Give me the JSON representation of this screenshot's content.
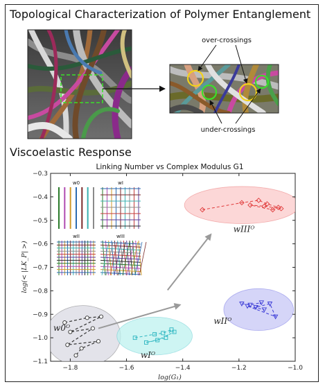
{
  "sections": {
    "top_heading": "Topological Characterization of Polymer Entanglement",
    "bottom_heading": "Viscoelastic Response"
  },
  "annotations": {
    "over_crossings": "over-crossings",
    "under_crossings": "under-crossings"
  },
  "colors": {
    "highlight_green": "#3be02a",
    "crossing_yellow": "#f2d21b",
    "region_w0": "#d9d9e3",
    "region_wI": "#bdf2ef",
    "region_wII": "#c7c7f5",
    "region_wIII": "#fbc9c9",
    "series_w0": "#333333",
    "series_wI": "#2ab5c0",
    "series_wII": "#3a3ad6",
    "series_wIII": "#e03a3a",
    "trend_arrow": "#999999"
  },
  "chart_data": {
    "type": "scatter",
    "title": "Linking Number vs Complex Modulus G1",
    "xlabel": "log(G₁)",
    "ylabel": "log(< |LK_P| >)",
    "xlim": [
      -1.87,
      -1.0
    ],
    "ylim": [
      -1.1,
      -0.3
    ],
    "xticks": [
      "−1.8",
      "−1.6",
      "−1.4",
      "−1.2",
      "−1.0"
    ],
    "yticks": [
      "−0.3",
      "−0.4",
      "−0.5",
      "−0.6",
      "−0.7",
      "−0.8",
      "−0.9",
      "−1.0",
      "−1.1"
    ],
    "grid": false,
    "series": [
      {
        "name": "w0ᴼ",
        "marker": "circle",
        "x": [
          -1.82,
          -1.74,
          -1.69,
          -1.8,
          -1.72,
          -1.81,
          -1.7,
          -1.76,
          -1.78
        ],
        "y": [
          -0.935,
          -0.915,
          -0.91,
          -0.975,
          -0.96,
          -1.03,
          -1.015,
          -1.045,
          -1.075
        ]
      },
      {
        "name": "wIᴼ",
        "marker": "square",
        "x": [
          -1.57,
          -1.5,
          -1.47,
          -1.44,
          -1.46,
          -1.53,
          -1.49,
          -1.43
        ],
        "y": [
          -1.0,
          -0.985,
          -0.98,
          -0.965,
          -1.0,
          -1.02,
          -1.01,
          -0.975
        ]
      },
      {
        "name": "wIIᴼ",
        "marker": "triangle-down",
        "x": [
          -1.19,
          -1.16,
          -1.12,
          -1.14,
          -1.09,
          -1.07,
          -1.17,
          -1.11
        ],
        "y": [
          -0.855,
          -0.86,
          -0.85,
          -0.87,
          -0.855,
          -0.91,
          -0.865,
          -0.88
        ]
      },
      {
        "name": "wIIIᴼ",
        "marker": "diamond",
        "x": [
          -1.33,
          -1.19,
          -1.13,
          -1.1,
          -1.06,
          -1.08,
          -1.16,
          -1.11,
          -1.05
        ],
        "y": [
          -0.455,
          -0.425,
          -0.415,
          -0.43,
          -0.445,
          -0.455,
          -0.435,
          -0.44,
          -0.45
        ]
      }
    ],
    "region_labels": [
      "w0ᴼ",
      "wIᴼ",
      "wIIᴼ",
      "wIIIᴼ"
    ],
    "inset_labels": [
      "w0",
      "wI",
      "wII",
      "wIII"
    ]
  }
}
